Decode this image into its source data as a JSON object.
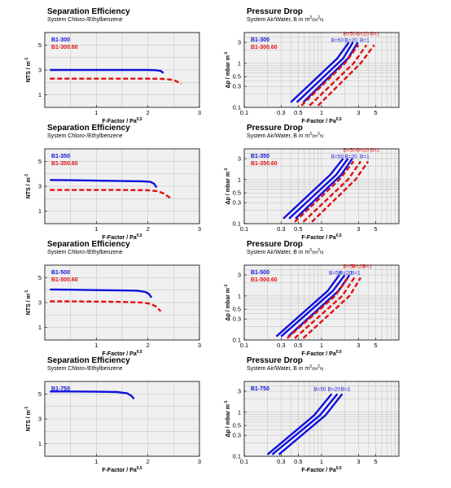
{
  "colors": {
    "blue": "#1010dd",
    "red": "#e01010",
    "plot_bg": "#f0f0f0",
    "grid": "#bdbdbd"
  },
  "chart_data": [
    {
      "id": "se1",
      "type": "line",
      "title": "Separation Efficiency",
      "subtitle": "System Chloro-/Ethylbenzene",
      "xlabel": "F-Factor / Pa",
      "xlabel_sup": "0,5",
      "ylabel": "NTS / m",
      "ylabel_sup": "-1",
      "xlim": [
        0,
        3
      ],
      "ylim": [
        0,
        6
      ],
      "xticks": [
        1,
        2,
        3
      ],
      "yticks": [
        1,
        3,
        5
      ],
      "grid": true,
      "series": [
        {
          "name": "B1-300",
          "color": "blue",
          "dash": false,
          "x": [
            0.1,
            0.5,
            1.0,
            1.5,
            2.0,
            2.15,
            2.25,
            2.3
          ],
          "y": [
            3.0,
            3.0,
            3.0,
            3.0,
            3.0,
            2.98,
            2.92,
            2.75
          ]
        },
        {
          "name": "B1-300.60",
          "color": "red",
          "dash": true,
          "x": [
            0.1,
            0.5,
            1.0,
            1.5,
            2.0,
            2.3,
            2.5,
            2.65
          ],
          "y": [
            2.3,
            2.3,
            2.3,
            2.3,
            2.3,
            2.28,
            2.2,
            1.9
          ]
        }
      ]
    },
    {
      "id": "pd1",
      "type": "line",
      "xscale": "log",
      "yscale": "log",
      "title": "Pressure Drop",
      "subtitle": "System Air/Water, B in m",
      "subtitle_sup": "3",
      "subtitle_tail": "/(m",
      "subtitle_sup2": "2",
      "subtitle_end": "h)",
      "xlabel": "F-Factor / Pa",
      "xlabel_sup": "0,5",
      "ylabel": "Δp / mbar m",
      "ylabel_sup": "-1",
      "xlim": [
        0.1,
        10
      ],
      "ylim": [
        0.1,
        5
      ],
      "xticks": [
        0.1,
        0.3,
        0.5,
        1,
        3,
        5
      ],
      "xticklabels": [
        "0.1",
        "0.3",
        "0.5",
        "1",
        "3",
        "5"
      ],
      "yticks": [
        0.1,
        0.3,
        0.5,
        1,
        3
      ],
      "yticklabels": [
        "0.1",
        "0.3",
        "0.5",
        "1",
        "3"
      ],
      "grid": true,
      "legend": [
        "B1-300",
        "B1-300.60"
      ],
      "annotations": [
        {
          "text": "B=50",
          "color": "red",
          "x": 2.3,
          "y": 4.3
        },
        {
          "text": "B=20",
          "color": "red",
          "x": 3.4,
          "y": 4.3
        },
        {
          "text": "B=1",
          "color": "red",
          "x": 4.9,
          "y": 4.3
        },
        {
          "text": "B=50",
          "color": "blue",
          "x": 1.6,
          "y": 3.05
        },
        {
          "text": "B=20",
          "color": "blue",
          "x": 2.4,
          "y": 3.05
        },
        {
          "text": "B=1",
          "color": "blue",
          "x": 3.6,
          "y": 3.05
        }
      ],
      "series": [
        {
          "name": "B=50",
          "color": "blue",
          "dash": false,
          "x": [
            0.4,
            1.6,
            2.25
          ],
          "y": [
            0.13,
            1.3,
            3.0
          ]
        },
        {
          "name": "B=20",
          "color": "blue",
          "dash": false,
          "x": [
            0.48,
            1.9,
            2.55
          ],
          "y": [
            0.13,
            1.3,
            3.0
          ]
        },
        {
          "name": "B=1",
          "color": "blue",
          "dash": false,
          "x": [
            0.58,
            2.2,
            2.95
          ],
          "y": [
            0.13,
            1.3,
            3.0
          ]
        },
        {
          "name": "B=50",
          "color": "red",
          "dash": true,
          "x": [
            0.55,
            2.0,
            3.0
          ],
          "y": [
            0.11,
            1.0,
            2.6
          ]
        },
        {
          "name": "B=20",
          "color": "red",
          "dash": true,
          "x": [
            0.7,
            2.6,
            3.8
          ],
          "y": [
            0.11,
            1.0,
            2.6
          ]
        },
        {
          "name": "B=1",
          "color": "red",
          "dash": true,
          "x": [
            0.9,
            3.2,
            4.8
          ],
          "y": [
            0.11,
            1.0,
            2.6
          ]
        }
      ]
    },
    {
      "id": "se2",
      "type": "line",
      "title": "Separation Efficiency",
      "subtitle": "System Chloro-/Ethylbenzene",
      "xlabel": "F-Factor / Pa",
      "xlabel_sup": "0,5",
      "ylabel": "NTS / m",
      "ylabel_sup": "-1",
      "xlim": [
        0,
        3
      ],
      "ylim": [
        0,
        6
      ],
      "xticks": [
        1,
        2,
        3
      ],
      "yticks": [
        1,
        3,
        5
      ],
      "grid": true,
      "series": [
        {
          "name": "B1-350",
          "color": "blue",
          "dash": false,
          "x": [
            0.1,
            0.5,
            1.0,
            1.5,
            1.9,
            2.05,
            2.12,
            2.17
          ],
          "y": [
            3.5,
            3.48,
            3.45,
            3.42,
            3.4,
            3.35,
            3.2,
            2.9
          ]
        },
        {
          "name": "B1-350.60",
          "color": "red",
          "dash": true,
          "x": [
            0.1,
            0.5,
            1.0,
            1.5,
            2.0,
            2.2,
            2.32,
            2.45
          ],
          "y": [
            2.7,
            2.7,
            2.7,
            2.7,
            2.68,
            2.6,
            2.4,
            2.0
          ]
        }
      ]
    },
    {
      "id": "pd2",
      "type": "line",
      "xscale": "log",
      "yscale": "log",
      "title": "Pressure Drop",
      "subtitle": "System Air/Water, B in m",
      "subtitle_sup": "3",
      "subtitle_tail": "/(m",
      "subtitle_sup2": "2",
      "subtitle_end": "h)",
      "xlabel": "F-Factor / Pa",
      "xlabel_sup": "0,5",
      "ylabel": "Δp / mbar m",
      "ylabel_sup": "-1",
      "xlim": [
        0.1,
        10
      ],
      "ylim": [
        0.1,
        5
      ],
      "xticks": [
        0.1,
        0.3,
        0.5,
        1,
        3,
        5
      ],
      "xticklabels": [
        "0.1",
        "0.3",
        "0.5",
        "1",
        "3",
        "5"
      ],
      "yticks": [
        0.1,
        0.3,
        0.5,
        1,
        3
      ],
      "yticklabels": [
        "0.1",
        "0.3",
        "0.5",
        "1",
        "3"
      ],
      "grid": true,
      "legend": [
        "B1-350",
        "B1-350.60"
      ],
      "annotations": [
        {
          "text": "B=50",
          "color": "red",
          "x": 2.3,
          "y": 4.3
        },
        {
          "text": "B=20",
          "color": "red",
          "x": 3.4,
          "y": 4.3
        },
        {
          "text": "B=1",
          "color": "red",
          "x": 4.9,
          "y": 4.3
        },
        {
          "text": "B=50",
          "color": "blue",
          "x": 1.6,
          "y": 3.05
        },
        {
          "text": "B=20",
          "color": "blue",
          "x": 2.4,
          "y": 3.05
        },
        {
          "text": "B=1",
          "color": "blue",
          "x": 3.6,
          "y": 3.05
        }
      ],
      "series": [
        {
          "name": "B=50",
          "color": "blue",
          "dash": false,
          "x": [
            0.32,
            1.3,
            1.9
          ],
          "y": [
            0.13,
            1.3,
            3.0
          ]
        },
        {
          "name": "B=20",
          "color": "blue",
          "dash": false,
          "x": [
            0.38,
            1.55,
            2.2
          ],
          "y": [
            0.13,
            1.3,
            3.0
          ]
        },
        {
          "name": "B=1",
          "color": "blue",
          "dash": false,
          "x": [
            0.46,
            1.8,
            2.5
          ],
          "y": [
            0.13,
            1.3,
            3.0
          ]
        },
        {
          "name": "B=50",
          "color": "red",
          "dash": true,
          "x": [
            0.45,
            1.7,
            2.6
          ],
          "y": [
            0.11,
            1.0,
            2.6
          ]
        },
        {
          "name": "B=20",
          "color": "red",
          "dash": true,
          "x": [
            0.58,
            2.2,
            3.2
          ],
          "y": [
            0.11,
            1.0,
            2.6
          ]
        },
        {
          "name": "B=1",
          "color": "red",
          "dash": true,
          "x": [
            0.75,
            2.75,
            4.0
          ],
          "y": [
            0.11,
            1.0,
            2.6
          ]
        }
      ]
    },
    {
      "id": "se3",
      "type": "line",
      "title": "Separation Efficiency",
      "subtitle": "System Chloro-/Ethylbenzene",
      "xlabel": "F-Factor / Pa",
      "xlabel_sup": "0,5",
      "ylabel": "NTS / m",
      "ylabel_sup": "-1",
      "xlim": [
        0,
        3
      ],
      "ylim": [
        0,
        6
      ],
      "xticks": [
        1,
        2,
        3
      ],
      "yticks": [
        1,
        3,
        5
      ],
      "grid": true,
      "series": [
        {
          "name": "B1-500",
          "color": "blue",
          "dash": false,
          "x": [
            0.1,
            0.5,
            1.0,
            1.5,
            1.8,
            1.95,
            2.02,
            2.07
          ],
          "y": [
            4.05,
            4.03,
            4.0,
            3.97,
            3.95,
            3.85,
            3.7,
            3.4
          ]
        },
        {
          "name": "B1-500.60",
          "color": "red",
          "dash": true,
          "x": [
            0.1,
            0.5,
            1.0,
            1.5,
            1.9,
            2.05,
            2.15,
            2.25
          ],
          "y": [
            3.1,
            3.1,
            3.08,
            3.05,
            3.0,
            2.9,
            2.7,
            2.3
          ]
        }
      ]
    },
    {
      "id": "pd3",
      "type": "line",
      "xscale": "log",
      "yscale": "log",
      "title": "Pressure Drop",
      "subtitle": "System Air/Water, B in m",
      "subtitle_sup": "3",
      "subtitle_tail": "/(m",
      "subtitle_sup2": "2",
      "subtitle_end": "h)",
      "xlabel": "F-Factor / Pa",
      "xlabel_sup": "0,5",
      "ylabel": "Δp / mbar m",
      "ylabel_sup": "-1",
      "xlim": [
        0.1,
        10
      ],
      "ylim": [
        0.1,
        5
      ],
      "xticks": [
        0.1,
        0.3,
        0.5,
        1,
        3,
        5
      ],
      "xticklabels": [
        "0.1",
        "0.3",
        "0.5",
        "1",
        "3",
        "5"
      ],
      "yticks": [
        0.1,
        0.3,
        0.5,
        1,
        3
      ],
      "yticklabels": [
        "0.1",
        "0.3",
        "0.5",
        "1",
        "3"
      ],
      "grid": true,
      "legend": [
        "B1-500",
        "B1-500.60"
      ],
      "annotations": [
        {
          "text": "B=50",
          "color": "red",
          "x": 2.3,
          "y": 4.3
        },
        {
          "text": "B=20",
          "color": "red",
          "x": 3.0,
          "y": 4.3
        },
        {
          "text": "B=1",
          "color": "red",
          "x": 3.9,
          "y": 4.3
        },
        {
          "text": "B=50",
          "color": "blue",
          "x": 1.5,
          "y": 3.05
        },
        {
          "text": "B=20",
          "color": "blue",
          "x": 2.05,
          "y": 3.05
        },
        {
          "text": "B=1",
          "color": "blue",
          "x": 2.75,
          "y": 3.05
        }
      ],
      "series": [
        {
          "name": "B=50",
          "color": "blue",
          "dash": false,
          "x": [
            0.26,
            1.2,
            1.7
          ],
          "y": [
            0.12,
            1.3,
            3.0
          ]
        },
        {
          "name": "B=20",
          "color": "blue",
          "dash": false,
          "x": [
            0.3,
            1.4,
            2.0
          ],
          "y": [
            0.12,
            1.3,
            3.0
          ]
        },
        {
          "name": "B=1",
          "color": "blue",
          "dash": false,
          "x": [
            0.37,
            1.65,
            2.3
          ],
          "y": [
            0.12,
            1.3,
            3.0
          ]
        },
        {
          "name": "B=50",
          "color": "red",
          "dash": true,
          "x": [
            0.36,
            1.5,
            2.2
          ],
          "y": [
            0.11,
            1.0,
            2.6
          ]
        },
        {
          "name": "B=20",
          "color": "red",
          "dash": true,
          "x": [
            0.45,
            1.85,
            2.65
          ],
          "y": [
            0.11,
            1.0,
            2.6
          ]
        },
        {
          "name": "B=1",
          "color": "red",
          "dash": true,
          "x": [
            0.58,
            2.3,
            3.2
          ],
          "y": [
            0.11,
            1.0,
            2.6
          ]
        }
      ]
    },
    {
      "id": "se4",
      "type": "line",
      "title": "Separation Efficiency",
      "subtitle": "System Chloro-/Ethylbenzene",
      "xlabel": "F-Factor / Pa",
      "xlabel_sup": "0,5",
      "ylabel": "NTS / m",
      "ylabel_sup": "-1",
      "xlim": [
        0,
        3
      ],
      "ylim": [
        0,
        6
      ],
      "xticks": [
        1,
        2,
        3
      ],
      "yticks": [
        1,
        3,
        5
      ],
      "grid": true,
      "series": [
        {
          "name": "B1-750",
          "color": "blue",
          "dash": false,
          "x": [
            0.1,
            0.5,
            1.0,
            1.4,
            1.6,
            1.68,
            1.73
          ],
          "y": [
            5.2,
            5.2,
            5.18,
            5.15,
            5.05,
            4.85,
            4.6
          ]
        }
      ]
    },
    {
      "id": "pd4",
      "type": "line",
      "xscale": "log",
      "yscale": "log",
      "title": "Pressure Drop",
      "subtitle": "System Air/Water, B in m",
      "subtitle_sup": "3",
      "subtitle_tail": "/(m",
      "subtitle_sup2": "2",
      "subtitle_end": "h)",
      "xlabel": "F-Factor / Pa",
      "xlabel_sup": "0,5",
      "ylabel": "Δp / mbar m",
      "ylabel_sup": "-1",
      "xlim": [
        0.1,
        10
      ],
      "ylim": [
        0.1,
        5
      ],
      "xticks": [
        0.1,
        0.3,
        0.5,
        1,
        3,
        5
      ],
      "xticklabels": [
        "0.1",
        "0.3",
        "0.5",
        "1",
        "3",
        "5"
      ],
      "yticks": [
        0.1,
        0.3,
        0.5,
        1,
        3
      ],
      "yticklabels": [
        "0.1",
        "0.3",
        "0.5",
        "1",
        "3"
      ],
      "grid": true,
      "legend": [
        "B1-750"
      ],
      "annotations": [
        {
          "text": "B=50",
          "color": "blue",
          "x": 0.95,
          "y": 3.05
        },
        {
          "text": "B=20",
          "color": "blue",
          "x": 1.45,
          "y": 3.05
        },
        {
          "text": "B=1",
          "color": "blue",
          "x": 2.05,
          "y": 3.05
        }
      ],
      "series": [
        {
          "name": "B=50",
          "color": "blue",
          "dash": false,
          "x": [
            0.2,
            0.8,
            1.35
          ],
          "y": [
            0.11,
            0.85,
            2.6
          ]
        },
        {
          "name": "B=20",
          "color": "blue",
          "dash": false,
          "x": [
            0.23,
            0.95,
            1.6
          ],
          "y": [
            0.11,
            0.85,
            2.6
          ]
        },
        {
          "name": "B=1",
          "color": "blue",
          "dash": false,
          "x": [
            0.28,
            1.12,
            1.85
          ],
          "y": [
            0.11,
            0.85,
            2.6
          ]
        }
      ]
    }
  ]
}
